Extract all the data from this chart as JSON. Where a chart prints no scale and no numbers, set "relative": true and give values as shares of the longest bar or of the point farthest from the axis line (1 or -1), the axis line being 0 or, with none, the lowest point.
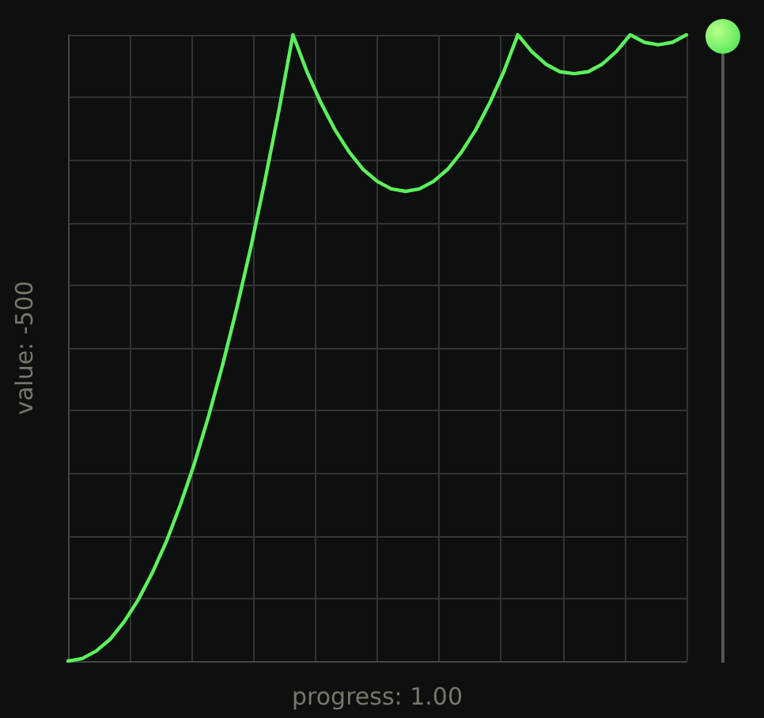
{
  "chart_data": {
    "type": "line",
    "relative": true,
    "xlabel": "progress: 1.00",
    "ylabel": "value: -500",
    "categories": [
      null,
      null,
      null,
      null,
      null,
      null,
      null,
      null,
      null,
      null,
      null,
      null,
      null,
      null,
      null,
      null,
      null,
      null,
      null,
      null,
      null,
      null,
      null,
      null,
      null,
      null,
      null,
      null,
      null,
      null,
      null,
      null,
      null,
      null,
      null,
      null,
      null,
      null,
      null,
      null,
      null,
      null,
      null,
      null,
      null
    ],
    "series": [
      {
        "color": "#5cf25c",
        "values": [
          0,
          0.004,
          0.016,
          0.035,
          0.063,
          0.098,
          0.141,
          0.191,
          0.25,
          0.316,
          0.391,
          0.473,
          0.563,
          0.66,
          0.766,
          0.879,
          1,
          0.941,
          0.891,
          0.848,
          0.813,
          0.785,
          0.766,
          0.754,
          0.75,
          0.754,
          0.766,
          0.785,
          0.813,
          0.848,
          0.891,
          0.941,
          1,
          0.973,
          0.953,
          0.941,
          0.938,
          0.941,
          0.953,
          0.973,
          1,
          0.988,
          0.984,
          0.988,
          1
        ]
      }
    ],
    "grid": true,
    "marker": "none",
    "line_style": "solid"
  }
}
